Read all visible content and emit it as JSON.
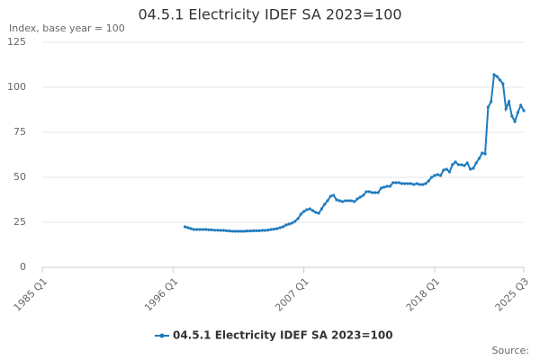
{
  "chart_data": {
    "type": "line",
    "title": "04.5.1 Electricity IDEF SA 2023=100",
    "y_label": "Index, base year = 100",
    "source": "Source:",
    "categories": [
      "1985 Q1",
      null,
      null,
      null,
      null,
      null,
      null,
      null,
      null,
      null,
      null,
      null,
      null,
      null,
      null,
      null,
      null,
      null,
      null,
      null,
      null,
      null,
      null,
      null,
      null,
      null,
      null,
      null,
      null,
      null,
      null,
      null,
      null,
      null,
      null,
      null,
      null,
      null,
      null,
      null,
      null,
      null,
      null,
      null,
      "1996 Q1",
      null,
      null,
      null,
      null,
      null,
      null,
      null,
      null,
      null,
      null,
      null,
      null,
      null,
      null,
      null,
      null,
      null,
      null,
      null,
      null,
      null,
      null,
      null,
      null,
      null,
      null,
      null,
      null,
      null,
      null,
      null,
      null,
      null,
      null,
      null,
      null,
      null,
      null,
      null,
      null,
      null,
      null,
      null,
      "2007 Q1",
      null,
      null,
      null,
      null,
      null,
      null,
      null,
      null,
      null,
      null,
      null,
      null,
      null,
      null,
      null,
      null,
      null,
      null,
      null,
      null,
      null,
      null,
      null,
      null,
      null,
      null,
      null,
      null,
      null,
      null,
      null,
      null,
      null,
      null,
      null,
      null,
      null,
      null,
      null,
      null,
      null,
      null,
      null,
      "2018 Q1",
      null,
      null,
      null,
      null,
      null,
      null,
      null,
      null,
      null,
      null,
      null,
      null,
      null,
      null,
      null,
      null,
      null,
      null,
      null,
      null,
      null,
      null,
      null,
      null,
      null,
      null,
      null,
      null,
      null,
      "2025 Q3"
    ],
    "series": [
      {
        "name": "04.5.1 Electricity IDEF SA 2023=100",
        "color": "#1f7bbd",
        "values": [
          null,
          null,
          null,
          null,
          null,
          null,
          null,
          null,
          null,
          null,
          null,
          null,
          null,
          null,
          null,
          null,
          null,
          null,
          null,
          null,
          null,
          null,
          null,
          null,
          null,
          null,
          null,
          null,
          null,
          null,
          null,
          null,
          null,
          null,
          null,
          null,
          null,
          null,
          null,
          null,
          null,
          null,
          null,
          null,
          null,
          null,
          null,
          null,
          22.5,
          22,
          21.5,
          21,
          21,
          21,
          21,
          21,
          20.8,
          20.8,
          20.6,
          20.6,
          20.5,
          20.5,
          20.3,
          20.2,
          20,
          20,
          20,
          20,
          20,
          20.2,
          20.2,
          20.3,
          20.3,
          20.3,
          20.5,
          20.5,
          20.7,
          21,
          21.2,
          21.5,
          22,
          22.5,
          23.5,
          24,
          24.5,
          25.5,
          27,
          29.5,
          31,
          32,
          32.5,
          31.5,
          30.5,
          30,
          32.5,
          35,
          37,
          39.5,
          40,
          37.5,
          37,
          36.5,
          37,
          37,
          37,
          36.5,
          38,
          39,
          40,
          42,
          42,
          41.5,
          41.5,
          41.5,
          44,
          44.5,
          45,
          45,
          47,
          47,
          47,
          46.5,
          46.5,
          46.5,
          46.5,
          46,
          46.5,
          46,
          46,
          46.5,
          48,
          50,
          51,
          51.5,
          51,
          54,
          54.5,
          53,
          57,
          58.5,
          57,
          57,
          56.5,
          58,
          54.5,
          55,
          58,
          60.5,
          63.5,
          63,
          89,
          92,
          107,
          106,
          104,
          102,
          88,
          92,
          84,
          81,
          86,
          90,
          87
        ]
      }
    ],
    "ylim": [
      0,
      125
    ],
    "yticks": [
      0,
      25,
      50,
      75,
      100,
      125
    ],
    "grid": true
  }
}
